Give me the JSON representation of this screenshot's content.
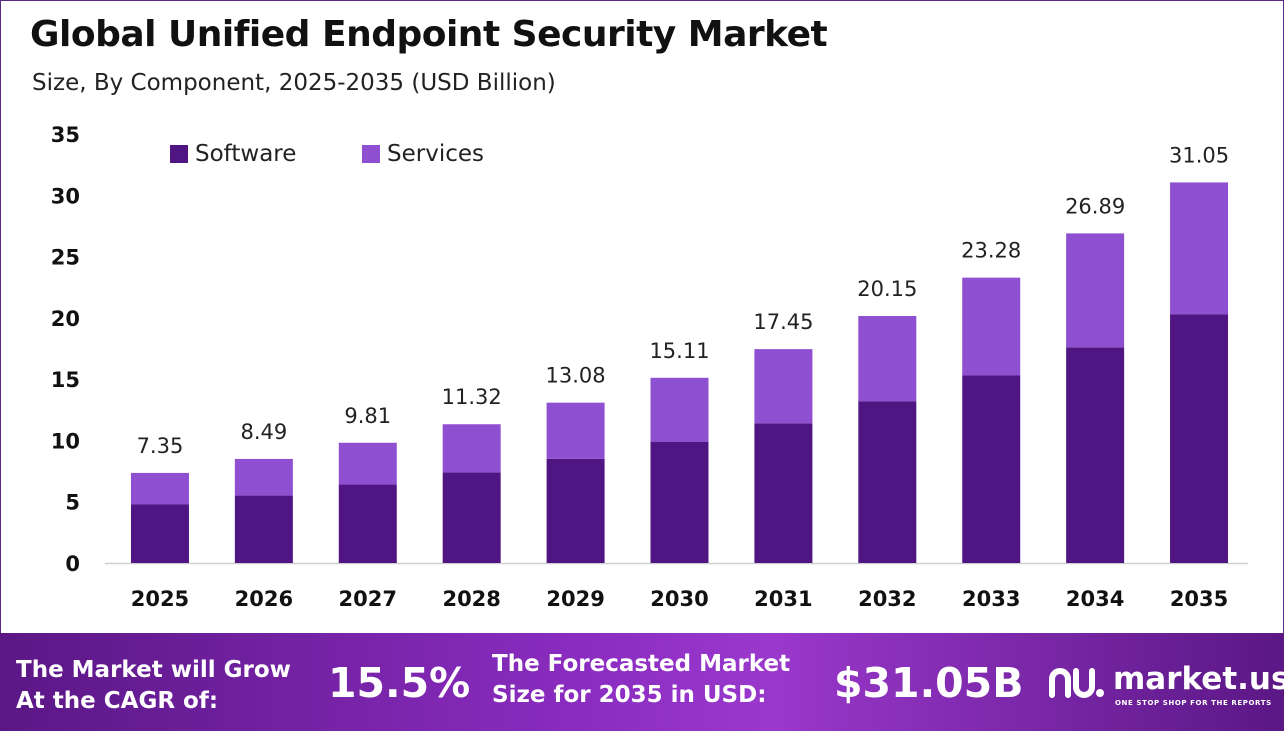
{
  "header": {
    "title": "Global Unified Endpoint Security Market",
    "subtitle": "Size, By Component, 2025-2035 (USD Billion)"
  },
  "chart_data": {
    "type": "bar",
    "stacked": true,
    "categories": [
      "2025",
      "2026",
      "2027",
      "2028",
      "2029",
      "2030",
      "2031",
      "2032",
      "2033",
      "2034",
      "2035"
    ],
    "series": [
      {
        "name": "Software",
        "color": "#4f1582",
        "values": [
          4.8,
          5.5,
          6.4,
          7.4,
          8.5,
          9.9,
          11.4,
          13.2,
          15.3,
          17.6,
          20.3
        ]
      },
      {
        "name": "Services",
        "color": "#8f4fd1",
        "values": [
          2.55,
          2.99,
          3.41,
          3.92,
          4.58,
          5.21,
          6.05,
          6.95,
          7.98,
          9.29,
          10.75
        ]
      }
    ],
    "totals": [
      "7.35",
      "8.49",
      "9.81",
      "11.32",
      "13.08",
      "15.11",
      "17.45",
      "20.15",
      "23.28",
      "26.89",
      "31.05"
    ],
    "ylim": [
      0,
      35
    ],
    "yticks": [
      0,
      5,
      10,
      15,
      20,
      25,
      30,
      35
    ],
    "grid": false,
    "legend": "top-left"
  },
  "footer": {
    "cagr_label_line1": "The Market will Grow",
    "cagr_label_line2": "At the CAGR of:",
    "cagr_value": "15.5%",
    "forecast_label_line1": "The Forecasted Market",
    "forecast_label_line2": "Size for 2035 in USD:",
    "forecast_value": "$31.05B",
    "logo_text": "market.us",
    "logo_tagline": "ONE STOP SHOP FOR THE REPORTS"
  }
}
